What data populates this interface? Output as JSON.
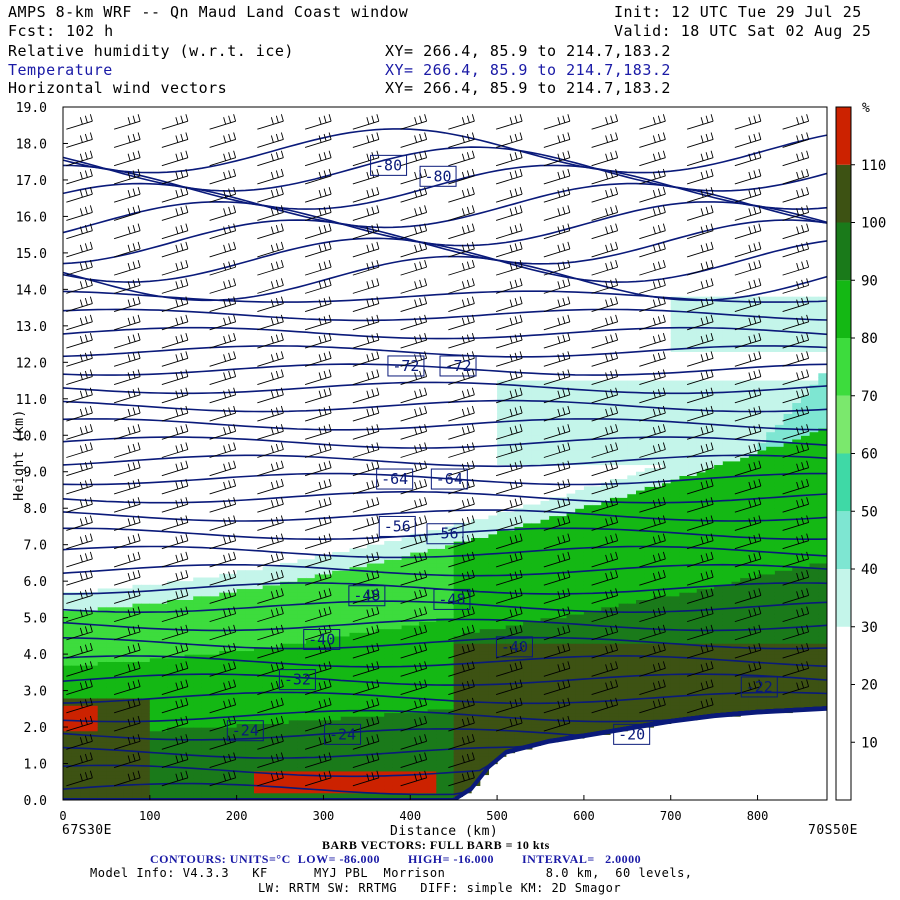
{
  "header": {
    "title": "AMPS 8-km WRF -- Qn Maud Land Coast window",
    "init": "Init: 12 UTC Tue 29 Jul 25",
    "fcst_label": "Fcst:",
    "fcst_value": "102 h",
    "valid": "Valid: 18 UTC Sat 02 Aug 25",
    "fields": [
      {
        "name": "Relative humidity (w.r.t. ice)",
        "xy": "XY= 266.4, 85.9 to 214.7,183.2"
      },
      {
        "name": "Temperature",
        "xy": "XY= 266.4, 85.9 to 214.7,183.2"
      },
      {
        "name": "Horizontal wind vectors",
        "xy": "XY= 266.4, 85.9 to 214.7,183.2"
      }
    ]
  },
  "chart_data": {
    "type": "heatmap",
    "xlabel": "Distance (km)",
    "ylabel": "Height (km)",
    "xlim": [
      0,
      880
    ],
    "ylim": [
      0,
      19
    ],
    "x_ticks": [
      0,
      100,
      200,
      300,
      400,
      500,
      600,
      700,
      800
    ],
    "y_ticks": [
      "0.0",
      "1.0",
      "2.0",
      "3.0",
      "4.0",
      "5.0",
      "6.0",
      "7.0",
      "8.0",
      "9.0",
      "10.0",
      "11.0",
      "12.0",
      "13.0",
      "14.0",
      "15.0",
      "16.0",
      "17.0",
      "18.0",
      "19.0"
    ],
    "x_left_label": "67S30E",
    "x_right_label": "70S50E",
    "colorbar": {
      "unit": "%",
      "ticks": [
        10,
        20,
        30,
        40,
        50,
        60,
        70,
        80,
        90,
        100,
        110
      ],
      "bins": [
        {
          "lo": 0,
          "hi": 30,
          "color": "#ffffff"
        },
        {
          "lo": 30,
          "hi": 40,
          "color": "#c4f5ea"
        },
        {
          "lo": 40,
          "hi": 50,
          "color": "#7ee6d2"
        },
        {
          "lo": 50,
          "hi": 60,
          "color": "#3fd9a6"
        },
        {
          "lo": 60,
          "hi": 70,
          "color": "#7be86d"
        },
        {
          "lo": 70,
          "hi": 80,
          "color": "#3ddc3d"
        },
        {
          "lo": 80,
          "hi": 90,
          "color": "#14b814"
        },
        {
          "lo": 90,
          "hi": 100,
          "color": "#1a7a1a"
        },
        {
          "lo": 100,
          "hi": 110,
          "color": "#3d5213"
        },
        {
          "lo": 110,
          "hi": 120,
          "color": "#cc2200"
        }
      ]
    },
    "temperature_contours": {
      "unit": "°C",
      "low": -86.0,
      "high": -16.0,
      "interval": 2.0,
      "labels": [
        {
          "text": "-80",
          "x": 375,
          "y": 17.4
        },
        {
          "text": "-80",
          "x": 432,
          "y": 17.1
        },
        {
          "text": "-72",
          "x": 395,
          "y": 11.9
        },
        {
          "text": "-72",
          "x": 455,
          "y": 11.9
        },
        {
          "text": "-64",
          "x": 382,
          "y": 8.8
        },
        {
          "text": "-64",
          "x": 445,
          "y": 8.8
        },
        {
          "text": "-56",
          "x": 385,
          "y": 7.5
        },
        {
          "text": "-56",
          "x": 440,
          "y": 7.3
        },
        {
          "text": "-48",
          "x": 350,
          "y": 5.6
        },
        {
          "text": "-48",
          "x": 448,
          "y": 5.5
        },
        {
          "text": "-40",
          "x": 298,
          "y": 4.4
        },
        {
          "text": "-40",
          "x": 520,
          "y": 4.2
        },
        {
          "text": "-32",
          "x": 270,
          "y": 3.3
        },
        {
          "text": "-24",
          "x": 210,
          "y": 1.9
        },
        {
          "text": "-24",
          "x": 322,
          "y": 1.8
        },
        {
          "text": "-20",
          "x": 655,
          "y": 1.8
        },
        {
          "text": "-22",
          "x": 802,
          "y": 3.1
        }
      ]
    },
    "terrain_km": [
      [
        0,
        0
      ],
      [
        100,
        0
      ],
      [
        200,
        0
      ],
      [
        300,
        0
      ],
      [
        400,
        0
      ],
      [
        450,
        0
      ],
      [
        470,
        0.3
      ],
      [
        490,
        0.9
      ],
      [
        510,
        1.3
      ],
      [
        560,
        1.6
      ],
      [
        600,
        1.75
      ],
      [
        650,
        1.95
      ],
      [
        700,
        2.15
      ],
      [
        750,
        2.3
      ],
      [
        800,
        2.4
      ],
      [
        880,
        2.5
      ]
    ]
  },
  "footer": {
    "barb_note": "BARB VECTORS: FULL BARB = 10 kts",
    "contours_line": "CONTOURS: UNITS=°C  LOW= -86.000        HIGH= -16.000        INTERVAL=   2.0000",
    "model_line1": "Model Info: V4.3.3   KF      MYJ PBL  Morrison             8.0 km,  60 levels,",
    "model_line2": "LW: RRTM SW: RRTMG   DIFF: simple KM: 2D Smagor"
  }
}
